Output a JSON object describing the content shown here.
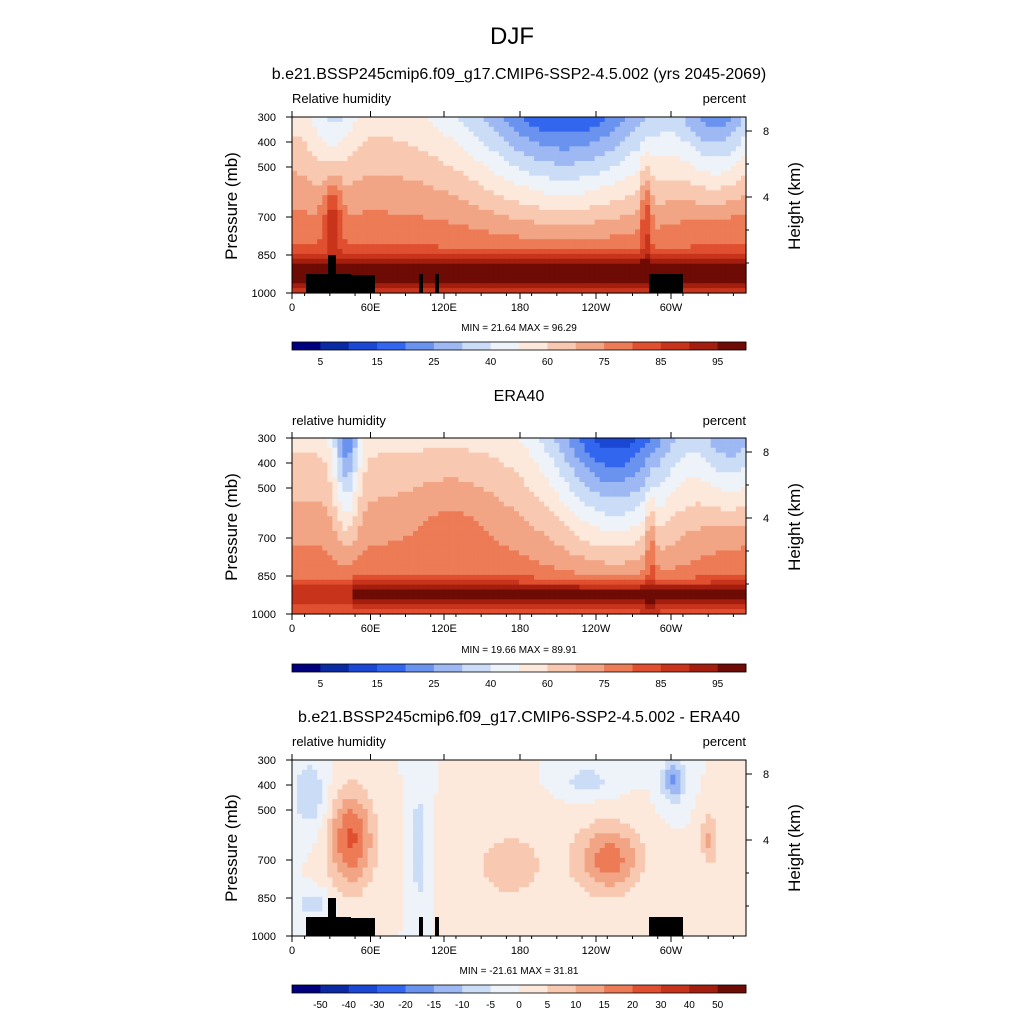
{
  "figure": {
    "title": "DJF"
  },
  "chart_data": [
    {
      "type": "heatmap",
      "title": "b.e21.BSSP245cmip6.f09_g17.CMIP6-SSP2-4.5.002 (yrs 2045-2069)",
      "left_label": "Relative humidity",
      "right_label": "percent",
      "ylabel": "Pressure (mb)",
      "ylabel_right": "Height (km)",
      "x_ticks": [
        "0",
        "60E",
        "120E",
        "180",
        "120W",
        "60W"
      ],
      "y_ticks": [
        "300",
        "400",
        "500",
        "700",
        "850",
        "1000"
      ],
      "height_ticks": [
        "8",
        "4"
      ],
      "stats": "MIN = 21.64  MAX = 96.29",
      "colorbar_labels": [
        "5",
        "15",
        "25",
        "40",
        "60",
        "75",
        "85",
        "95"
      ],
      "colorbar_colors": [
        "#00007f",
        "#0a2aa3",
        "#1a48d4",
        "#3366ee",
        "#6a93ef",
        "#9db8f3",
        "#cbdcf6",
        "#eef3fa",
        "#fde9dc",
        "#f8c9b0",
        "#f2a585",
        "#ec7b56",
        "#e04f30",
        "#c8341b",
        "#a41e0f",
        "#6e0b04"
      ],
      "terrain": [
        [
          6,
          50
        ],
        [
          50,
          45
        ],
        [
          39,
          45
        ],
        [
          39,
          44
        ],
        [
          36,
          44
        ],
        [
          36,
          42
        ],
        [
          32,
          42
        ],
        [
          32,
          39
        ],
        [
          20,
          39
        ],
        [
          20,
          36
        ],
        [
          15,
          36
        ],
        [
          15,
          38
        ],
        [
          11,
          38
        ],
        [
          11,
          33
        ],
        [
          6,
          33
        ],
        [
          0,
          33
        ]
      ]
    },
    {
      "type": "heatmap",
      "title": "ERA40",
      "left_label": "relative humidity",
      "right_label": "percent",
      "ylabel": "Pressure (mb)",
      "ylabel_right": "Height (km)",
      "x_ticks": [
        "0",
        "60E",
        "120E",
        "180",
        "120W",
        "60W"
      ],
      "y_ticks": [
        "300",
        "400",
        "500",
        "700",
        "850",
        "1000"
      ],
      "height_ticks": [
        "8",
        "4"
      ],
      "stats": "MIN = 19.66  MAX = 89.91",
      "colorbar_labels": [
        "5",
        "15",
        "25",
        "40",
        "60",
        "75",
        "85",
        "95"
      ],
      "colorbar_colors": [
        "#00007f",
        "#0a2aa3",
        "#1a48d4",
        "#3366ee",
        "#6a93ef",
        "#9db8f3",
        "#cbdcf6",
        "#eef3fa",
        "#fde9dc",
        "#f8c9b0",
        "#f2a585",
        "#ec7b56",
        "#e04f30",
        "#c8341b",
        "#a41e0f",
        "#6e0b04"
      ],
      "terrain": []
    },
    {
      "type": "heatmap",
      "title": "b.e21.BSSP245cmip6.f09_g17.CMIP6-SSP2-4.5.002 - ERA40",
      "left_label": "relative humidity",
      "right_label": "percent",
      "ylabel": "Pressure (mb)",
      "ylabel_right": "Height (km)",
      "x_ticks": [
        "0",
        "60E",
        "120E",
        "180",
        "120W",
        "60W"
      ],
      "y_ticks": [
        "300",
        "400",
        "500",
        "700",
        "850",
        "1000"
      ],
      "height_ticks": [
        "8",
        "4"
      ],
      "stats": "MIN = -21.61  MAX = 31.81",
      "colorbar_labels": [
        "-50",
        "-40",
        "-30",
        "-20",
        "-15",
        "-10",
        "-5",
        "0",
        "5",
        "10",
        "15",
        "20",
        "30",
        "40",
        "50"
      ],
      "colorbar_colors": [
        "#00007f",
        "#0a2aa3",
        "#1a48d4",
        "#3366ee",
        "#6a93ef",
        "#9db8f3",
        "#cbdcf6",
        "#eef3fa",
        "#fde9dc",
        "#f8c9b0",
        "#f2a585",
        "#ec7b56",
        "#e04f30",
        "#c8341b",
        "#a41e0f",
        "#6e0b04"
      ],
      "terrain": [
        [
          6,
          50
        ],
        [
          50,
          45
        ],
        [
          39,
          45
        ],
        [
          39,
          44
        ],
        [
          36,
          44
        ],
        [
          36,
          42
        ],
        [
          32,
          42
        ],
        [
          32,
          39
        ],
        [
          20,
          39
        ],
        [
          20,
          36
        ],
        [
          15,
          36
        ],
        [
          15,
          38
        ],
        [
          11,
          38
        ],
        [
          11,
          33
        ],
        [
          6,
          33
        ],
        [
          0,
          33
        ]
      ]
    }
  ]
}
